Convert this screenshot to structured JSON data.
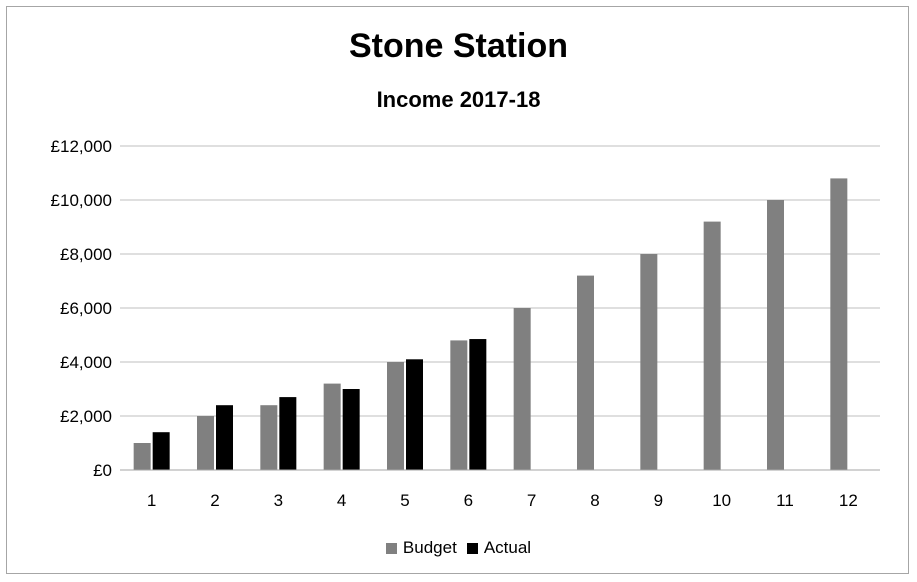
{
  "chart_data": {
    "type": "bar",
    "title": "Stone Station",
    "subtitle": "Income 2017-18",
    "xlabel": "",
    "ylabel": "",
    "categories": [
      "1",
      "2",
      "3",
      "4",
      "5",
      "6",
      "7",
      "8",
      "9",
      "10",
      "11",
      "12"
    ],
    "series": [
      {
        "name": "Budget",
        "color": "#808080",
        "values": [
          1000,
          2000,
          2400,
          3200,
          4000,
          4800,
          6000,
          7200,
          8000,
          9200,
          10000,
          10800
        ]
      },
      {
        "name": "Actual",
        "color": "#000000",
        "values": [
          1400,
          2400,
          2700,
          3000,
          4100,
          4850,
          null,
          null,
          null,
          null,
          null,
          null
        ]
      }
    ],
    "ylim": [
      0,
      12000
    ],
    "yticks": [
      {
        "value": 0,
        "label": "£0"
      },
      {
        "value": 2000,
        "label": "£2,000"
      },
      {
        "value": 4000,
        "label": "£4,000"
      },
      {
        "value": 6000,
        "label": "£6,000"
      },
      {
        "value": 8000,
        "label": "£8,000"
      },
      {
        "value": 10000,
        "label": "£10,000"
      },
      {
        "value": 12000,
        "label": "£12,000"
      }
    ],
    "grid": true,
    "legend_position": "bottom"
  }
}
